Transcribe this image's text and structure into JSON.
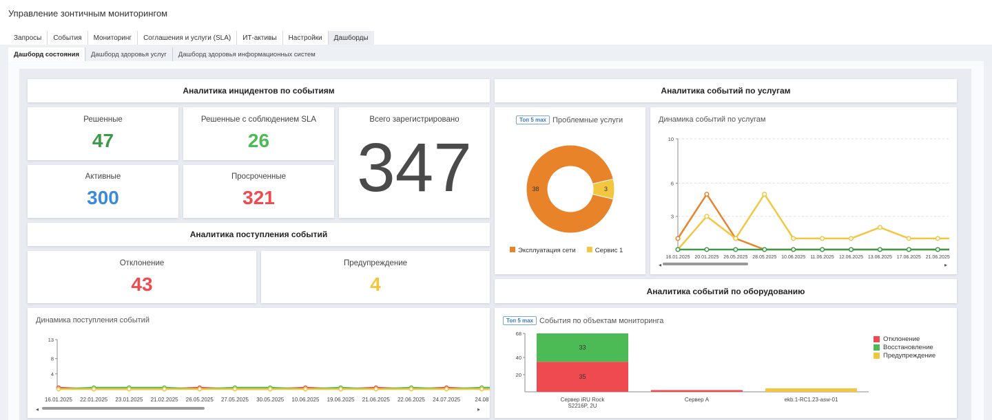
{
  "app": {
    "title": "Управление зонтичным мониторингом"
  },
  "top_tabs": [
    {
      "label": "Запросы"
    },
    {
      "label": "События"
    },
    {
      "label": "Мониторинг"
    },
    {
      "label": "Соглашения и услуги (SLA)"
    },
    {
      "label": "ИТ-активы"
    },
    {
      "label": "Настройки"
    },
    {
      "label": "Дашборды"
    }
  ],
  "sub_tabs": [
    {
      "label": "Дашборд состояния"
    },
    {
      "label": "Дашборд здоровья услуг"
    },
    {
      "label": "Дашборд здоровья информационных систем"
    }
  ],
  "incidents": {
    "title": "Аналитика инцидентов по событиям",
    "resolved": {
      "label": "Решенные",
      "value": "47"
    },
    "resolved_sla": {
      "label": "Решенные с соблюдением SLA",
      "value": "26"
    },
    "active": {
      "label": "Активные",
      "value": "300"
    },
    "overdue": {
      "label": "Просроченные",
      "value": "321"
    },
    "total": {
      "label": "Всего зарегистрировано",
      "value": "347"
    }
  },
  "arrival": {
    "title": "Аналитика поступления событий",
    "deviation": {
      "label": "Отклонение",
      "value": "43"
    },
    "warning": {
      "label": "Предупреждение",
      "value": "4"
    }
  },
  "services": {
    "title": "Аналитика событий по услугам",
    "badge": "Топ 5 max",
    "problem_title": "Проблемные услуги",
    "dynamics_title": "Динамика событий по услугам"
  },
  "equipment": {
    "title": "Аналитика событий по оборудованию",
    "badge": "Топ 5 max",
    "objects_title": "События по объектам мониторинга"
  },
  "arrival_dynamics": {
    "title": "Динамика поступления событий"
  },
  "colors": {
    "green": "#3e9a4b",
    "light_green": "#4dbb55",
    "blue": "#3d8ad9",
    "red": "#ef4a4f",
    "yellow": "#f3c63f",
    "orange": "#e8832a"
  },
  "chart_data": [
    {
      "type": "pie",
      "title": "Проблемные услуги",
      "labels": [
        "Эксплуатация сети",
        "Сервис 1"
      ],
      "values": [
        38,
        3
      ],
      "colors": [
        "#e8832a",
        "#f3c63f"
      ],
      "legend_position": "bottom"
    },
    {
      "type": "line",
      "title": "Динамика событий по услугам",
      "x": [
        "16.01.2025",
        "20.01.2025",
        "26.05.2025",
        "28.05.2025",
        "10.06.2025",
        "11.06.2025",
        "12.06.2025",
        "13.06.2025",
        "17.06.2025",
        "21.06.2025"
      ],
      "yticks": [
        3,
        6,
        10
      ],
      "ylim": [
        0,
        10
      ],
      "grid": true,
      "series": [
        {
          "values": [
            1,
            5,
            1,
            0,
            0,
            0,
            0,
            0,
            0,
            0
          ],
          "color": "#e8832a"
        },
        {
          "values": [
            0,
            3,
            1,
            5,
            1,
            1,
            1,
            2,
            1,
            1
          ],
          "color": "#f3c63f"
        },
        {
          "values": [
            0,
            0,
            0,
            0,
            0,
            0,
            0,
            0,
            0,
            0
          ],
          "color": "#3e9a4b"
        }
      ]
    },
    {
      "type": "line",
      "title": "Динамика поступления событий",
      "x": [
        "16.01.2025",
        "22.01.2025",
        "23.01.2025",
        "21.02.2025",
        "26.05.2025",
        "27.05.2025",
        "30.05.2025",
        "10.06.2025",
        "19.06.2025",
        "21.06.2025",
        "22.06.2025",
        "24.07.2025",
        "24.08"
      ],
      "yticks": [
        4,
        8,
        13
      ],
      "ylim": [
        0,
        13
      ],
      "grid": false,
      "series": [
        {
          "values": [
            1,
            0,
            0,
            0,
            1,
            0,
            0,
            1,
            0,
            1,
            0,
            1,
            0
          ],
          "color": "#ef4a4f"
        },
        {
          "values": [
            0,
            1,
            1,
            1,
            0,
            1,
            1,
            0,
            1,
            0,
            1,
            0,
            1
          ],
          "color": "#4dbb55"
        },
        {
          "values": [
            0,
            0,
            0,
            0,
            0,
            0,
            0,
            0,
            0,
            0,
            0,
            0,
            0
          ],
          "color": "#f3c63f"
        }
      ]
    },
    {
      "type": "bar",
      "title": "События по объектам мониторинга",
      "categories": [
        "Сервер iRU Rock S2216P, 2U",
        "Сервер А",
        "ekb.1-RC1.23-asw-01"
      ],
      "category_lines": [
        [
          "Сервер iRU Rock",
          "S2216P, 2U"
        ],
        [
          "Сервер А"
        ],
        [
          "ekb.1-RC1.23-asw-01"
        ]
      ],
      "stacked": true,
      "yticks": [
        20,
        40,
        68
      ],
      "ylim": [
        0,
        68
      ],
      "legend_position": "right",
      "series": [
        {
          "name": "Отклонение",
          "values": [
            35,
            2,
            0
          ],
          "color": "#ef4a4f"
        },
        {
          "name": "Восстановление",
          "values": [
            33,
            0,
            0
          ],
          "color": "#4dbb55"
        },
        {
          "name": "Предупреждение",
          "values": [
            0,
            0,
            4
          ],
          "color": "#f3c63f"
        }
      ]
    }
  ]
}
